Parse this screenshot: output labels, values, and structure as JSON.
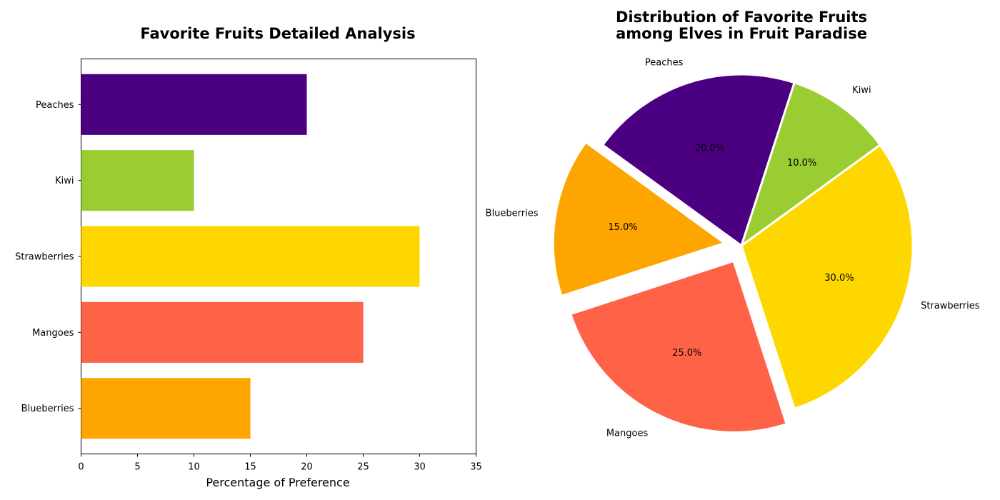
{
  "chart_data": [
    {
      "type": "bar",
      "orientation": "horizontal",
      "title": "Favorite Fruits Detailed Analysis",
      "xlabel": "Percentage of Preference",
      "ylabel": "",
      "categories": [
        "Blueberries",
        "Mangoes",
        "Strawberries",
        "Kiwi",
        "Peaches"
      ],
      "values": [
        15,
        25,
        30,
        10,
        20
      ],
      "colors": [
        "#FFA500",
        "#FF6347",
        "#FFD700",
        "#9ACD32",
        "#4B0082"
      ],
      "xlim": [
        0,
        35
      ],
      "xticks": [
        "0",
        "5",
        "10",
        "15",
        "20",
        "25",
        "30",
        "35"
      ],
      "grid": false
    },
    {
      "type": "pie",
      "title_lines": [
        "Distribution of Favorite Fruits",
        "among Elves in Fruit Paradise"
      ],
      "labels": [
        "Peaches",
        "Kiwi",
        "Strawberries",
        "Mangoes",
        "Blueberries"
      ],
      "values": [
        20,
        10,
        30,
        25,
        15
      ],
      "percent_labels": [
        "20.0%",
        "10.0%",
        "30.0%",
        "25.0%",
        "15.0%"
      ],
      "colors": [
        "#4B0082",
        "#9ACD32",
        "#FFD700",
        "#FF6347",
        "#FFA500"
      ],
      "explode": [
        0,
        0,
        0,
        0.1,
        0.1
      ],
      "start_angle_deg": 144,
      "direction": "clockwise"
    }
  ]
}
